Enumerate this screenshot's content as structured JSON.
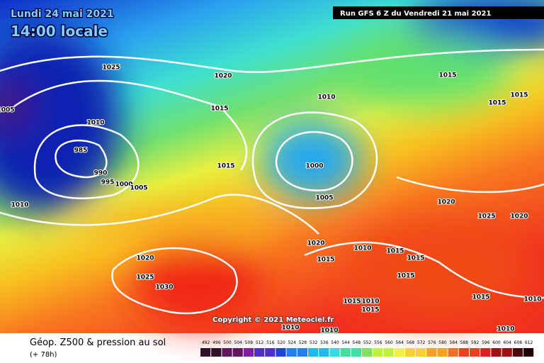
{
  "header": {
    "date": "Lundi 24 mai 2021",
    "time": "14:00 locale",
    "run": "Run GFS 6 Z du Vendredi 21 mai 2021"
  },
  "copyright": "Copyright © 2021 Meteociel.fr",
  "isobar_labels": [
    "1025",
    "1020",
    "1015",
    "1010",
    "1005",
    "1010",
    "985",
    "990",
    "995",
    "1000",
    "1005",
    "1015",
    "1000",
    "1005",
    "1010",
    "1015",
    "1015",
    "1015",
    "1020",
    "1025",
    "1020",
    "1020",
    "1010",
    "1015",
    "1015",
    "1015",
    "1015",
    "1020",
    "1025",
    "1030",
    "1015",
    "1010",
    "1015",
    "1015",
    "1010",
    "1010",
    "1010",
    "1010"
  ],
  "legend": {
    "title": "Géop. Z500 & pression au sol",
    "lead": "(+ 78h)",
    "scale": [
      492,
      496,
      500,
      504,
      508,
      512,
      516,
      520,
      524,
      528,
      532,
      536,
      540,
      544,
      548,
      552,
      556,
      560,
      564,
      568,
      572,
      576,
      580,
      584,
      588,
      592,
      596,
      600,
      604,
      608,
      612
    ]
  }
}
